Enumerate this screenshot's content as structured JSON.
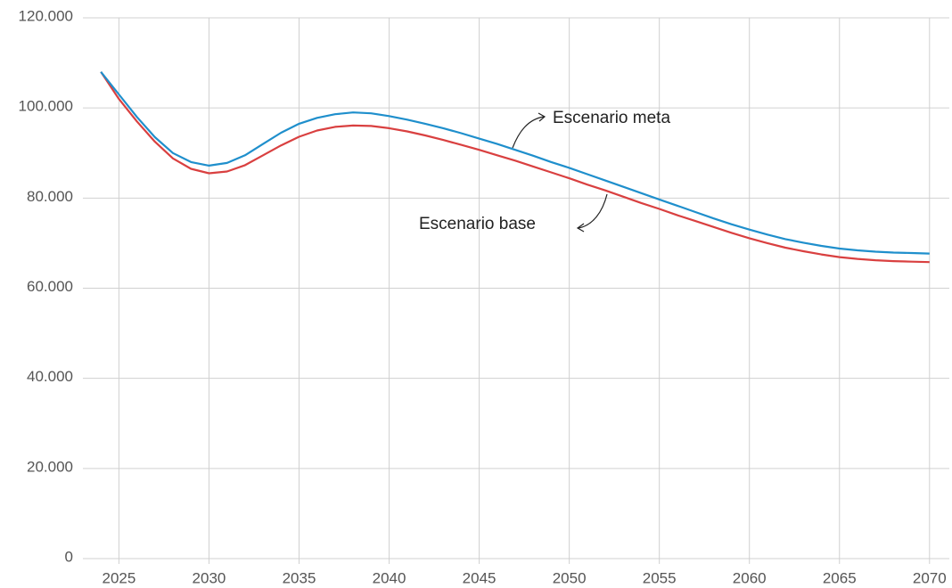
{
  "chart_data": {
    "type": "line",
    "x": [
      2024,
      2025,
      2026,
      2027,
      2028,
      2029,
      2030,
      2031,
      2032,
      2033,
      2034,
      2035,
      2036,
      2037,
      2038,
      2039,
      2040,
      2041,
      2042,
      2043,
      2044,
      2045,
      2046,
      2047,
      2048,
      2049,
      2050,
      2051,
      2052,
      2053,
      2054,
      2055,
      2056,
      2057,
      2058,
      2059,
      2060,
      2061,
      2062,
      2063,
      2064,
      2065,
      2066,
      2067,
      2068,
      2069,
      2070
    ],
    "series": [
      {
        "name": "Escenario meta",
        "color": "#1f8fcc",
        "values": [
          108000,
          103000,
          98000,
          93500,
          90000,
          88000,
          87200,
          87800,
          89500,
          92000,
          94500,
          96500,
          97800,
          98600,
          99000,
          98800,
          98200,
          97400,
          96500,
          95500,
          94400,
          93200,
          92000,
          90700,
          89400,
          88000,
          86700,
          85300,
          83900,
          82500,
          81100,
          79700,
          78300,
          76900,
          75500,
          74200,
          73000,
          71900,
          70900,
          70100,
          69400,
          68800,
          68400,
          68100,
          67900,
          67800,
          67700
        ]
      },
      {
        "name": "Escenario base",
        "color": "#d94040",
        "values": [
          108000,
          102000,
          97000,
          92500,
          88800,
          86500,
          85500,
          85900,
          87300,
          89500,
          91700,
          93600,
          95000,
          95800,
          96100,
          96000,
          95500,
          94800,
          93900,
          92900,
          91800,
          90700,
          89500,
          88300,
          87000,
          85700,
          84400,
          83000,
          81700,
          80300,
          78900,
          77600,
          76200,
          74900,
          73600,
          72300,
          71100,
          70000,
          69000,
          68200,
          67500,
          66900,
          66500,
          66200,
          66000,
          65900,
          65800
        ]
      }
    ],
    "xlim": [
      2023,
      2071
    ],
    "xticks": [
      2025,
      2030,
      2035,
      2040,
      2045,
      2050,
      2055,
      2060,
      2065,
      2070
    ],
    "ylim": [
      0,
      120000
    ],
    "yticks": [
      0,
      {
        "value": 20000,
        "label": "20.000"
      },
      {
        "value": 40000,
        "label": "40.000"
      },
      {
        "value": 60000,
        "label": "60.000"
      },
      {
        "value": 80000,
        "label": "80.000"
      },
      {
        "value": 100000,
        "label": "100.000"
      },
      {
        "value": 120000,
        "label": "120.000"
      }
    ],
    "grid": true
  }
}
